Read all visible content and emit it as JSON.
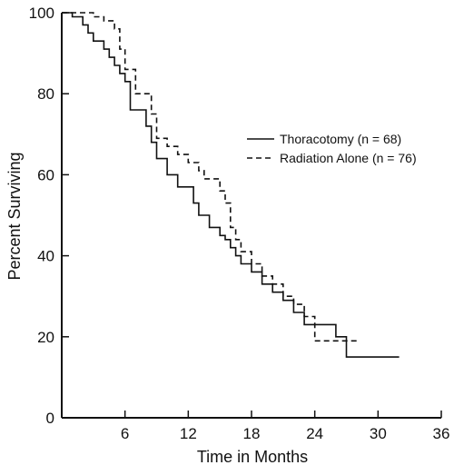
{
  "chart_data": {
    "type": "line",
    "xlabel": "Time in Months",
    "ylabel": "Percent Surviving",
    "xlim": [
      0,
      36
    ],
    "ylim": [
      0,
      100
    ],
    "x_ticks": [
      6,
      12,
      18,
      24,
      30,
      36
    ],
    "y_ticks": [
      0,
      20,
      40,
      60,
      80,
      100
    ],
    "grid": false,
    "legend_position": "right",
    "step": true,
    "series": [
      {
        "name": "Thoracotomy (n = 68)",
        "style": "solid",
        "color": "#111111",
        "x": [
          0,
          1,
          2,
          2.5,
          3,
          4,
          4.5,
          5,
          5.5,
          6,
          6.5,
          7,
          8,
          8.5,
          9,
          10,
          11,
          12,
          12.5,
          13,
          14,
          14.5,
          15,
          15.5,
          16,
          16.5,
          17,
          18,
          19,
          20,
          21,
          22,
          23,
          25,
          26,
          27,
          32
        ],
        "y": [
          100,
          99,
          97,
          95,
          93,
          91,
          89,
          87,
          85,
          83,
          76,
          76,
          72,
          68,
          64,
          60,
          57,
          57,
          53,
          50,
          47,
          47,
          45,
          44,
          42,
          40,
          38,
          36,
          33,
          31,
          29,
          26,
          23,
          23,
          20,
          15,
          15
        ]
      },
      {
        "name": "Radiation Alone (n = 76)",
        "style": "dashed",
        "color": "#111111",
        "x": [
          0,
          2,
          3,
          4,
          5,
          5.5,
          6,
          7,
          8,
          8.5,
          9,
          10,
          11,
          12,
          13,
          13.5,
          15,
          15.5,
          16,
          16.5,
          17,
          18,
          19,
          20,
          21,
          22,
          23,
          24,
          25,
          26,
          27,
          28
        ],
        "y": [
          100,
          100,
          99,
          98,
          96,
          91,
          86,
          80,
          80,
          75,
          69,
          67,
          65,
          63,
          61,
          59,
          56,
          53,
          47,
          44,
          41,
          38,
          35,
          33,
          30,
          28,
          25,
          19,
          19,
          19,
          19,
          19
        ]
      }
    ]
  }
}
